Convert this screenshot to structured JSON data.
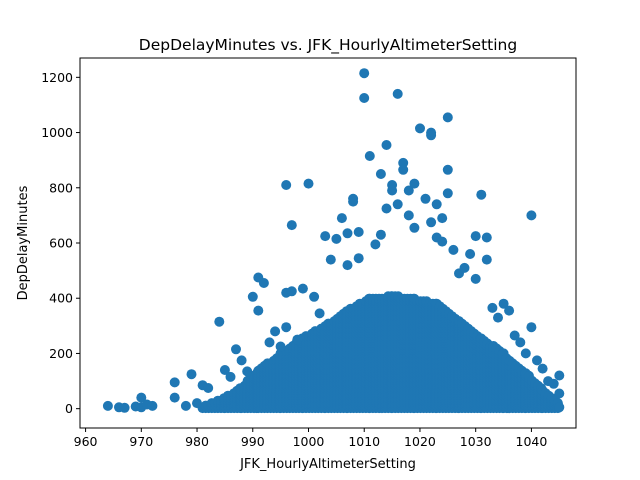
{
  "chart_data": {
    "type": "scatter",
    "title": "DepDelayMinutes vs. JFK_HourlyAltimeterSetting",
    "xlabel": "JFK_HourlyAltimeterSetting",
    "ylabel": "DepDelayMinutes",
    "xlim": [
      959,
      1048
    ],
    "ylim": [
      -70,
      1270
    ],
    "xticks": [
      960,
      970,
      980,
      990,
      1000,
      1010,
      1020,
      1030,
      1040
    ],
    "yticks": [
      0,
      200,
      400,
      600,
      800,
      1000,
      1200
    ],
    "grid": false,
    "color": "#1f77b4",
    "points": [
      [
        964,
        10
      ],
      [
        966,
        5
      ],
      [
        967,
        3
      ],
      [
        969,
        8
      ],
      [
        970,
        40
      ],
      [
        970,
        5
      ],
      [
        971,
        15
      ],
      [
        972,
        10
      ],
      [
        976,
        95
      ],
      [
        976,
        40
      ],
      [
        978,
        10
      ],
      [
        979,
        125
      ],
      [
        980,
        20
      ],
      [
        981,
        85
      ],
      [
        982,
        75
      ],
      [
        984,
        315
      ],
      [
        985,
        140
      ],
      [
        986,
        115
      ],
      [
        987,
        215
      ],
      [
        988,
        175
      ],
      [
        989,
        135
      ],
      [
        990,
        405
      ],
      [
        991,
        355
      ],
      [
        991,
        475
      ],
      [
        992,
        455
      ],
      [
        993,
        240
      ],
      [
        994,
        280
      ],
      [
        995,
        225
      ],
      [
        996,
        810
      ],
      [
        996,
        420
      ],
      [
        996,
        295
      ],
      [
        997,
        665
      ],
      [
        997,
        425
      ],
      [
        998,
        250
      ],
      [
        999,
        435
      ],
      [
        1000,
        815
      ],
      [
        1001,
        405
      ],
      [
        1002,
        345
      ],
      [
        1003,
        625
      ],
      [
        1004,
        540
      ],
      [
        1005,
        615
      ],
      [
        1006,
        690
      ],
      [
        1007,
        520
      ],
      [
        1007,
        635
      ],
      [
        1008,
        750
      ],
      [
        1008,
        760
      ],
      [
        1009,
        545
      ],
      [
        1009,
        640
      ],
      [
        1010,
        1215
      ],
      [
        1010,
        1125
      ],
      [
        1011,
        915
      ],
      [
        1012,
        595
      ],
      [
        1013,
        850
      ],
      [
        1013,
        630
      ],
      [
        1014,
        955
      ],
      [
        1014,
        725
      ],
      [
        1015,
        810
      ],
      [
        1015,
        790
      ],
      [
        1016,
        1140
      ],
      [
        1016,
        740
      ],
      [
        1017,
        890
      ],
      [
        1017,
        865
      ],
      [
        1018,
        790
      ],
      [
        1018,
        700
      ],
      [
        1019,
        815
      ],
      [
        1019,
        655
      ],
      [
        1020,
        1015
      ],
      [
        1021,
        760
      ],
      [
        1022,
        1000
      ],
      [
        1022,
        990
      ],
      [
        1022,
        675
      ],
      [
        1023,
        740
      ],
      [
        1023,
        620
      ],
      [
        1024,
        690
      ],
      [
        1024,
        605
      ],
      [
        1025,
        1055
      ],
      [
        1025,
        865
      ],
      [
        1025,
        780
      ],
      [
        1026,
        575
      ],
      [
        1027,
        490
      ],
      [
        1028,
        510
      ],
      [
        1029,
        560
      ],
      [
        1030,
        625
      ],
      [
        1030,
        470
      ],
      [
        1031,
        775
      ],
      [
        1032,
        620
      ],
      [
        1032,
        540
      ],
      [
        1033,
        365
      ],
      [
        1034,
        330
      ],
      [
        1035,
        380
      ],
      [
        1036,
        355
      ],
      [
        1037,
        265
      ],
      [
        1038,
        240
      ],
      [
        1039,
        200
      ],
      [
        1040,
        700
      ],
      [
        1040,
        295
      ],
      [
        1041,
        175
      ],
      [
        1042,
        145
      ],
      [
        1043,
        100
      ],
      [
        1044,
        90
      ],
      [
        1045,
        120
      ],
      [
        1045,
        55
      ],
      [
        1045,
        5
      ]
    ],
    "cloud_envelope": [
      [
        981,
        10
      ],
      [
        985,
        40
      ],
      [
        988,
        80
      ],
      [
        991,
        140
      ],
      [
        995,
        200
      ],
      [
        999,
        260
      ],
      [
        1003,
        300
      ],
      [
        1007,
        360
      ],
      [
        1011,
        400
      ],
      [
        1015,
        410
      ],
      [
        1019,
        400
      ],
      [
        1023,
        380
      ],
      [
        1027,
        320
      ],
      [
        1031,
        260
      ],
      [
        1035,
        200
      ],
      [
        1039,
        130
      ],
      [
        1042,
        70
      ],
      [
        1045,
        20
      ]
    ]
  }
}
